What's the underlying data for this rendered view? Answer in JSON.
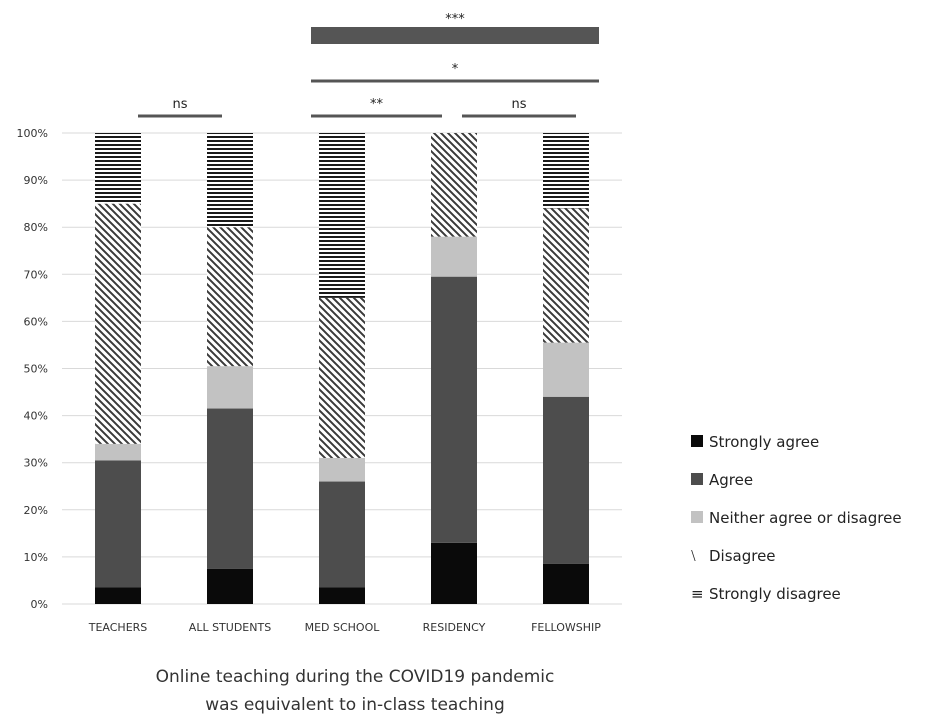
{
  "chart_data": {
    "type": "bar",
    "stacked": true,
    "percent": true,
    "categories": [
      "TEACHERS",
      "ALL STUDENTS",
      "MED SCHOOL",
      "RESIDENCY",
      "FELLOWSHIP"
    ],
    "series": [
      {
        "name": "Strongly agree",
        "values": [
          3.5,
          7.5,
          3.5,
          13,
          8.5
        ],
        "color": "#0a0a0a",
        "pattern": "solid"
      },
      {
        "name": "Agree",
        "values": [
          27,
          34,
          22.5,
          56.5,
          35.5
        ],
        "color": "#4d4d4d",
        "pattern": "solid"
      },
      {
        "name": "Neither agree or disagree",
        "values": [
          3.5,
          9,
          5,
          8.5,
          11.5
        ],
        "color": "#c2c2c2",
        "pattern": "solid"
      },
      {
        "name": "Disagree",
        "values": [
          51,
          29.5,
          34,
          22,
          28.5
        ],
        "color": "#3a3a3a",
        "pattern": "diagonal"
      },
      {
        "name": "Strongly disagree",
        "values": [
          15,
          20,
          35,
          0,
          16
        ],
        "color": "#1a1a1a",
        "pattern": "horizontal"
      }
    ],
    "ylim": [
      0,
      100
    ],
    "yticks": [
      "0%",
      "10%",
      "20%",
      "30%",
      "40%",
      "50%",
      "60%",
      "70%",
      "80%",
      "90%",
      "100%"
    ],
    "grid": true,
    "legend_position": "right",
    "significance": [
      {
        "label": "ns",
        "from": 0,
        "to": 1
      },
      {
        "label": "**",
        "from": 2,
        "to": 3
      },
      {
        "label": "ns",
        "from": 3,
        "to": 4
      },
      {
        "label": "*",
        "from": 2,
        "to": 4
      },
      {
        "label": "***",
        "from": 2,
        "to": 4,
        "box": true
      }
    ],
    "title": "Online teaching during the COVID19 pandemic\nwas equivalent to in-class teaching",
    "title_lines": [
      "Online teaching during the COVID19 pandemic",
      "was equivalent to in-class teaching"
    ]
  }
}
